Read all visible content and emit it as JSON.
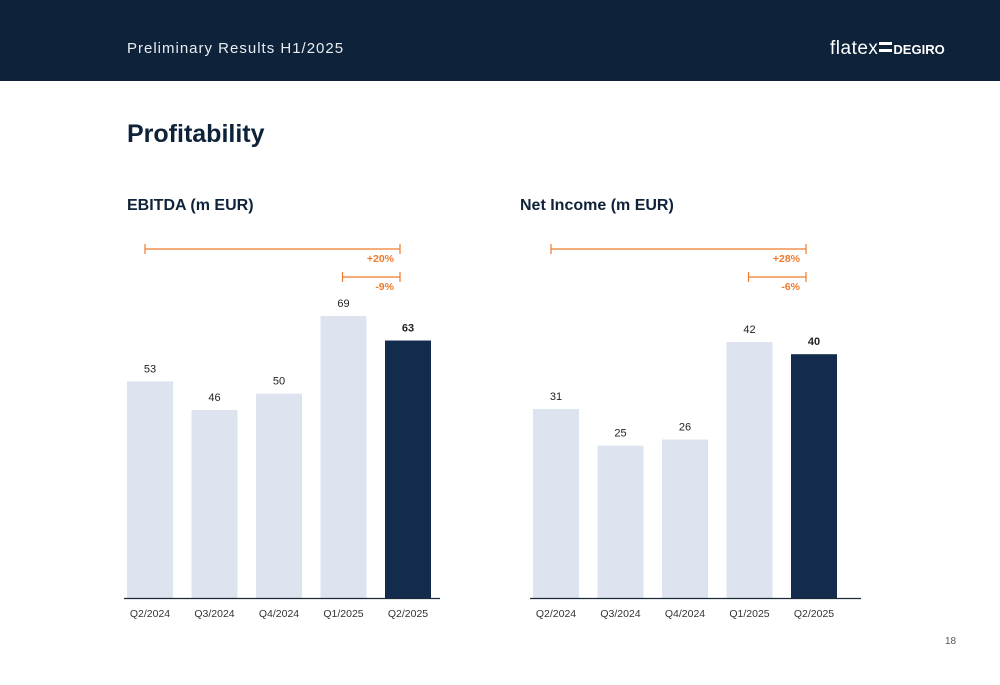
{
  "header": {
    "title": "Preliminary Results H1/2025",
    "logo_left": "flatex",
    "logo_right": "DEGIRO"
  },
  "page_title": "Profitability",
  "colors": {
    "header_bg": "#0e2239",
    "bar_light": "#dde4ef",
    "bar_dark": "#132c4d",
    "accent": "#f07a2c",
    "text_dark": "#0e2239",
    "axis": "#1a2a3a"
  },
  "chart_data": [
    {
      "type": "bar",
      "title": "EBITDA (m EUR)",
      "categories": [
        "Q2/2024",
        "Q3/2024",
        "Q4/2024",
        "Q1/2025",
        "Q2/2025"
      ],
      "values": [
        53,
        46,
        50,
        69,
        63
      ],
      "highlight_index": 4,
      "ylim": [
        0,
        69
      ],
      "annotations": [
        {
          "from": "Q2/2024",
          "to": "Q2/2025",
          "label": "+20%"
        },
        {
          "from": "Q1/2025",
          "to": "Q2/2025",
          "label": "-9%"
        }
      ]
    },
    {
      "type": "bar",
      "title": "Net Income (m EUR)",
      "categories": [
        "Q2/2024",
        "Q3/2024",
        "Q4/2024",
        "Q1/2025",
        "Q2/2025"
      ],
      "values": [
        31,
        25,
        26,
        42,
        40
      ],
      "highlight_index": 4,
      "ylim": [
        0,
        42
      ],
      "annotations": [
        {
          "from": "Q2/2024",
          "to": "Q2/2025",
          "label": "+28%"
        },
        {
          "from": "Q1/2025",
          "to": "Q2/2025",
          "label": "-6%"
        }
      ]
    }
  ],
  "page_number": "18"
}
